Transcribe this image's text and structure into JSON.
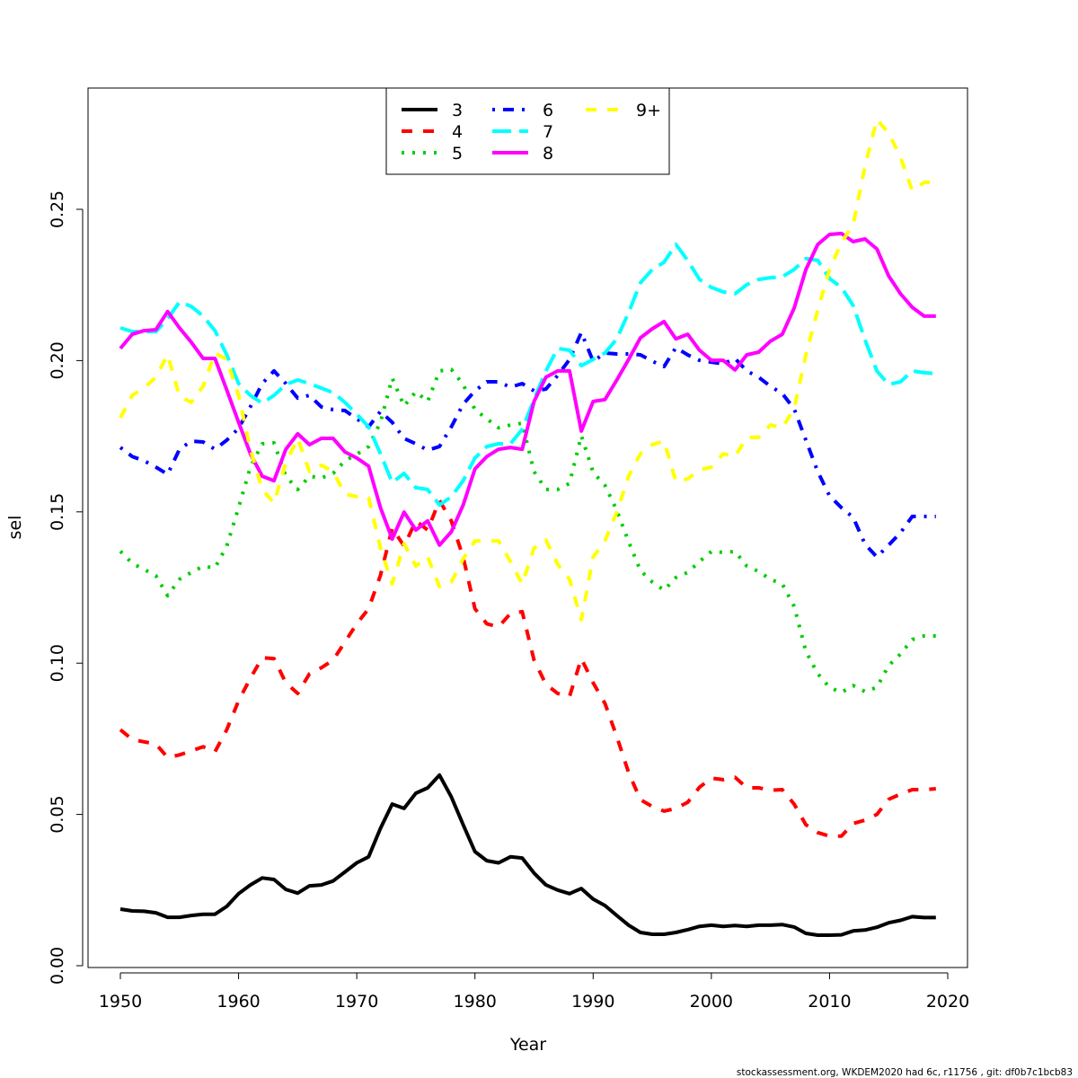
{
  "chart_data": {
    "type": "line",
    "title": "",
    "xlabel": "Year",
    "ylabel": "sel",
    "xlim": [
      1947.3,
      2021.7
    ],
    "ylim": [
      0,
      0.29
    ],
    "x_ticks": [
      1950,
      1960,
      1970,
      1980,
      1990,
      2000,
      2010,
      2020
    ],
    "y_ticks": [
      "0.00",
      "0.05",
      "0.10",
      "0.15",
      "0.20",
      "0.25"
    ],
    "grid": false,
    "legend_placement": "top",
    "x_start": 1950,
    "series": [
      {
        "name": "3",
        "color": "#000000",
        "style": "solid",
        "values": [
          0.0187,
          0.0181,
          0.018,
          0.0175,
          0.016,
          0.016,
          0.0166,
          0.017,
          0.017,
          0.0196,
          0.0238,
          0.0267,
          0.029,
          0.0285,
          0.0252,
          0.024,
          0.0264,
          0.0267,
          0.028,
          0.031,
          0.034,
          0.036,
          0.0454,
          0.0534,
          0.052,
          0.057,
          0.0588,
          0.063,
          0.0558,
          0.0466,
          0.0377,
          0.0347,
          0.034,
          0.036,
          0.0356,
          0.0306,
          0.0267,
          0.025,
          0.0238,
          0.0255,
          0.022,
          0.0199,
          0.0166,
          0.0134,
          0.011,
          0.0104,
          0.0104,
          0.011,
          0.0119,
          0.013,
          0.0134,
          0.013,
          0.0133,
          0.013,
          0.0134,
          0.0134,
          0.0136,
          0.0128,
          0.0107,
          0.0101,
          0.0101,
          0.0102,
          0.0115,
          0.0118,
          0.0127,
          0.0142,
          0.015,
          0.0162,
          0.0159,
          0.0159
        ]
      },
      {
        "name": "4",
        "color": "#ff0000",
        "style": "dashed",
        "values": [
          0.078,
          0.0748,
          0.074,
          0.0733,
          0.0688,
          0.0697,
          0.071,
          0.0724,
          0.0707,
          0.078,
          0.0876,
          0.095,
          0.1018,
          0.1015,
          0.0935,
          0.09,
          0.0965,
          0.0985,
          0.101,
          0.107,
          0.113,
          0.118,
          0.129,
          0.1446,
          0.1387,
          0.147,
          0.144,
          0.1538,
          0.147,
          0.135,
          0.118,
          0.113,
          0.112,
          0.1164,
          0.117,
          0.101,
          0.093,
          0.09,
          0.089,
          0.1015,
          0.0935,
          0.0867,
          0.0757,
          0.0638,
          0.0549,
          0.0526,
          0.0511,
          0.052,
          0.054,
          0.059,
          0.062,
          0.0615,
          0.0623,
          0.0588,
          0.0588,
          0.058,
          0.0582,
          0.0534,
          0.0466,
          0.044,
          0.0428,
          0.0428,
          0.047,
          0.0481,
          0.05,
          0.055,
          0.0567,
          0.0582,
          0.0582,
          0.0585
        ]
      },
      {
        "name": "5",
        "color": "#00cd00",
        "style": "dotted",
        "values": [
          0.137,
          0.133,
          0.131,
          0.1289,
          0.1223,
          0.1277,
          0.13,
          0.132,
          0.1315,
          0.1387,
          0.1514,
          0.1648,
          0.1725,
          0.1728,
          0.1618,
          0.1574,
          0.1618,
          0.1612,
          0.1627,
          0.1669,
          0.169,
          0.1716,
          0.1796,
          0.1942,
          0.185,
          0.1897,
          0.1865,
          0.1966,
          0.1971,
          0.1921,
          0.1838,
          0.1808,
          0.1778,
          0.1787,
          0.1793,
          0.1633,
          0.1574,
          0.1574,
          0.1594,
          0.1752,
          0.163,
          0.1588,
          0.1505,
          0.1401,
          0.1306,
          0.1268,
          0.1241,
          0.1283,
          0.13,
          0.1336,
          0.1369,
          0.1366,
          0.1369,
          0.1321,
          0.1303,
          0.1277,
          0.1262,
          0.1188,
          0.1039,
          0.0965,
          0.092,
          0.0903,
          0.0926,
          0.0906,
          0.092,
          0.0992,
          0.103,
          0.1078,
          0.109,
          0.109
        ]
      },
      {
        "name": "6",
        "color": "#0000ff",
        "style": "dotdash",
        "values": [
          0.1713,
          0.1683,
          0.1669,
          0.1648,
          0.1624,
          0.1707,
          0.1734,
          0.1731,
          0.1707,
          0.1737,
          0.1776,
          0.1847,
          0.1924,
          0.1966,
          0.1924,
          0.1876,
          0.1885,
          0.1847,
          0.1838,
          0.1835,
          0.1808,
          0.1781,
          0.1832,
          0.1796,
          0.1743,
          0.1725,
          0.1704,
          0.1716,
          0.1781,
          0.1856,
          0.19,
          0.193,
          0.193,
          0.1912,
          0.1924,
          0.19,
          0.1906,
          0.1951,
          0.2004,
          0.2093,
          0.1998,
          0.2025,
          0.2022,
          0.2022,
          0.2019,
          0.1998,
          0.198,
          0.2043,
          0.2019,
          0.2001,
          0.1995,
          0.1989,
          0.2007,
          0.1966,
          0.1945,
          0.1915,
          0.1891,
          0.1841,
          0.1737,
          0.1633,
          0.1553,
          0.1514,
          0.1482,
          0.1393,
          0.1351,
          0.139,
          0.1431,
          0.1485,
          0.1485,
          0.1485
        ]
      },
      {
        "name": "7",
        "color": "#00ffff",
        "style": "longdash",
        "values": [
          0.2108,
          0.2096,
          0.2096,
          0.2096,
          0.2138,
          0.2194,
          0.2179,
          0.2147,
          0.2099,
          0.2019,
          0.1924,
          0.1885,
          0.1859,
          0.1885,
          0.1921,
          0.1936,
          0.1924,
          0.1909,
          0.1894,
          0.1862,
          0.1823,
          0.1781,
          0.1692,
          0.1597,
          0.1627,
          0.158,
          0.1574,
          0.1523,
          0.155,
          0.1603,
          0.1678,
          0.1716,
          0.1725,
          0.1725,
          0.1773,
          0.1871,
          0.1966,
          0.204,
          0.2034,
          0.1983,
          0.2004,
          0.2025,
          0.2072,
          0.2159,
          0.2257,
          0.2301,
          0.2325,
          0.2384,
          0.2331,
          0.2268,
          0.2242,
          0.2227,
          0.2221,
          0.2251,
          0.2268,
          0.2274,
          0.2277,
          0.2301,
          0.2337,
          0.2331,
          0.2271,
          0.2242,
          0.2182,
          0.2069,
          0.1966,
          0.1921,
          0.193,
          0.1966,
          0.196,
          0.1957
        ]
      },
      {
        "name": "8",
        "color": "#ff00ff",
        "style": "solid",
        "values": [
          0.204,
          0.2087,
          0.2099,
          0.2102,
          0.2162,
          0.2108,
          0.2061,
          0.2007,
          0.2007,
          0.1903,
          0.1796,
          0.1692,
          0.1618,
          0.1603,
          0.1707,
          0.1758,
          0.1722,
          0.1743,
          0.1743,
          0.1698,
          0.1678,
          0.1651,
          0.1514,
          0.141,
          0.1499,
          0.144,
          0.147,
          0.139,
          0.1434,
          0.1523,
          0.1642,
          0.1683,
          0.1707,
          0.1713,
          0.1707,
          0.1865,
          0.1945,
          0.1966,
          0.1966,
          0.1767,
          0.1865,
          0.1871,
          0.1936,
          0.2004,
          0.2075,
          0.2105,
          0.2129,
          0.2072,
          0.2087,
          0.2034,
          0.2001,
          0.2001,
          0.1969,
          0.2019,
          0.2028,
          0.2064,
          0.2087,
          0.2173,
          0.2301,
          0.2384,
          0.2417,
          0.242,
          0.2393,
          0.2402,
          0.2369,
          0.228,
          0.2221,
          0.2176,
          0.2147,
          0.2147
        ]
      },
      {
        "name": "9+",
        "color": "#ffff00",
        "style": "dashed",
        "values": [
          0.1811,
          0.1885,
          0.1909,
          0.1945,
          0.2019,
          0.1882,
          0.1862,
          0.1915,
          0.2025,
          0.2004,
          0.1885,
          0.1707,
          0.1574,
          0.1529,
          0.1663,
          0.1743,
          0.1633,
          0.1654,
          0.1633,
          0.1559,
          0.155,
          0.1547,
          0.1381,
          0.1262,
          0.1395,
          0.1321,
          0.1351,
          0.1253,
          0.1268,
          0.1345,
          0.1404,
          0.1404,
          0.1404,
          0.1336,
          0.1262,
          0.1381,
          0.1407,
          0.1327,
          0.1277,
          0.1143,
          0.1351,
          0.1404,
          0.1499,
          0.1618,
          0.1692,
          0.1722,
          0.1734,
          0.16,
          0.1609,
          0.1639,
          0.1648,
          0.1692,
          0.1683,
          0.1746,
          0.1746,
          0.1787,
          0.1778,
          0.1841,
          0.2019,
          0.2167,
          0.2301,
          0.239,
          0.2449,
          0.2643,
          0.2797,
          0.2752,
          0.2672,
          0.2562,
          0.2589,
          0.2589
        ]
      }
    ]
  },
  "footer": "stockassessment.org, WKDEM2020 had 6c, r11756 , git: df0b7c1bcb83"
}
